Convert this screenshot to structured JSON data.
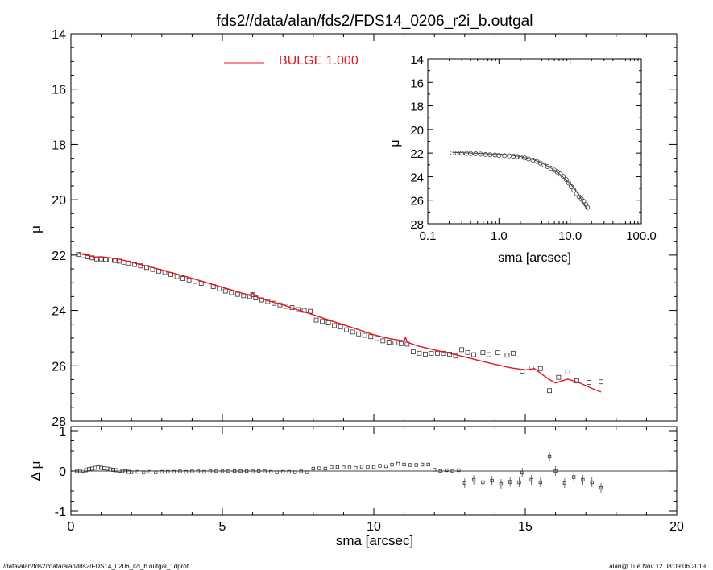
{
  "title": "fds2//data/alan/fds2/FDS14_0206_r2i_b.outgal",
  "footer_left": "/data/alan/fds2//data/alan/fds2/FDS14_0206_r2i_b.outgal_1dprof",
  "footer_right": "alan@  Tue Nov 12 08:09:06 2019",
  "legend": {
    "label": "BULGE  1.000",
    "color": "#e8141b"
  },
  "chart_data": [
    {
      "id": "main",
      "type": "scatter",
      "xlabel": "sma [arcsec]",
      "ylabel": "μ",
      "xlim": [
        0,
        20
      ],
      "ylim": [
        28,
        14
      ],
      "y_inverted": true,
      "xticks": [
        0,
        5,
        10,
        15,
        20
      ],
      "yticks": [
        14,
        16,
        18,
        20,
        22,
        24,
        26,
        28
      ],
      "observed": {
        "x": [
          0.25,
          0.4,
          0.55,
          0.7,
          0.85,
          1.0,
          1.15,
          1.3,
          1.45,
          1.6,
          1.75,
          1.9,
          2.1,
          2.3,
          2.5,
          2.7,
          2.9,
          3.1,
          3.3,
          3.5,
          3.7,
          3.9,
          4.1,
          4.3,
          4.5,
          4.7,
          4.9,
          5.1,
          5.3,
          5.5,
          5.7,
          5.9,
          6.0,
          6.1,
          6.3,
          6.5,
          6.7,
          6.9,
          7.1,
          7.3,
          7.5,
          7.7,
          7.9,
          8.1,
          8.3,
          8.5,
          8.7,
          8.9,
          9.1,
          9.3,
          9.5,
          9.7,
          9.9,
          10.1,
          10.3,
          10.5,
          10.7,
          10.9,
          11.1,
          11.3,
          11.5,
          11.7,
          11.9,
          12.1,
          12.3,
          12.5,
          12.7,
          12.9,
          13.1,
          13.3,
          13.6,
          13.8,
          14.1,
          14.4,
          14.6,
          14.9,
          15.2,
          15.5,
          15.8,
          16.1,
          16.4,
          16.7,
          17.1,
          17.5
        ],
        "y": [
          21.98,
          22.02,
          22.06,
          22.1,
          22.14,
          22.14,
          22.16,
          22.18,
          22.2,
          22.22,
          22.26,
          22.29,
          22.34,
          22.39,
          22.45,
          22.52,
          22.58,
          22.63,
          22.7,
          22.78,
          22.85,
          22.9,
          22.95,
          23.02,
          23.08,
          23.14,
          23.22,
          23.3,
          23.36,
          23.42,
          23.47,
          23.5,
          23.43,
          23.55,
          23.62,
          23.68,
          23.74,
          23.8,
          23.85,
          23.9,
          23.97,
          24.0,
          24.03,
          24.35,
          24.4,
          24.45,
          24.55,
          24.6,
          24.7,
          24.78,
          24.85,
          24.9,
          24.95,
          25.02,
          25.1,
          25.15,
          25.18,
          25.2,
          25.22,
          25.5,
          25.55,
          25.58,
          25.55,
          25.55,
          25.55,
          25.58,
          25.65,
          25.42,
          25.52,
          25.6,
          25.53,
          25.6,
          25.53,
          25.62,
          25.55,
          26.2,
          26.08,
          26.1,
          26.9,
          26.42,
          26.22,
          26.55,
          26.6,
          26.58
        ]
      },
      "model": {
        "name": "BULGE  1.000",
        "x": [
          0.25,
          0.5,
          0.8,
          1.0,
          1.3,
          1.6,
          2.0,
          2.4,
          2.8,
          3.2,
          3.6,
          4.0,
          4.4,
          4.8,
          5.2,
          5.6,
          5.9,
          6.0,
          6.1,
          6.5,
          7.0,
          7.5,
          8.0,
          8.5,
          9.0,
          9.5,
          10.0,
          10.5,
          11.0,
          11.05,
          11.1,
          11.5,
          12.0,
          12.5,
          13.0,
          13.5,
          14.0,
          14.5,
          15.0,
          15.3,
          15.6,
          15.8,
          16.0,
          16.4,
          16.8,
          17.2,
          17.5
        ],
        "y": [
          21.93,
          22.0,
          22.07,
          22.06,
          22.1,
          22.15,
          22.26,
          22.37,
          22.48,
          22.6,
          22.72,
          22.84,
          22.97,
          23.1,
          23.23,
          23.36,
          23.46,
          23.38,
          23.5,
          23.65,
          23.8,
          23.98,
          24.16,
          24.34,
          24.52,
          24.7,
          24.88,
          25.02,
          25.1,
          24.98,
          25.15,
          25.3,
          25.43,
          25.55,
          25.68,
          25.82,
          25.95,
          26.07,
          26.15,
          26.1,
          26.35,
          26.5,
          26.62,
          26.48,
          26.62,
          26.82,
          26.95
        ]
      }
    },
    {
      "id": "residual",
      "type": "scatter",
      "xlabel": "",
      "ylabel": "Δ μ",
      "xlim": [
        0,
        20
      ],
      "ylim": [
        -1.1,
        1.1
      ],
      "yticks": [
        -1,
        0,
        1
      ],
      "x": [
        0.2,
        0.3,
        0.4,
        0.5,
        0.6,
        0.7,
        0.8,
        0.9,
        1.0,
        1.1,
        1.2,
        1.3,
        1.4,
        1.5,
        1.6,
        1.7,
        1.8,
        1.9,
        2.0,
        2.2,
        2.4,
        2.6,
        2.8,
        3.0,
        3.2,
        3.4,
        3.6,
        3.8,
        4.0,
        4.2,
        4.4,
        4.6,
        4.8,
        5.0,
        5.2,
        5.4,
        5.6,
        5.8,
        6.0,
        6.2,
        6.4,
        6.6,
        6.8,
        7.0,
        7.2,
        7.4,
        7.6,
        7.8,
        8.0,
        8.2,
        8.4,
        8.6,
        8.8,
        9.0,
        9.2,
        9.4,
        9.6,
        9.8,
        10.0,
        10.2,
        10.4,
        10.6,
        10.8,
        11.0,
        11.2,
        11.4,
        11.6,
        11.8,
        12.0,
        12.2,
        12.4,
        12.6,
        12.8,
        13.0,
        13.3,
        13.6,
        13.9,
        14.2,
        14.5,
        14.8,
        14.9,
        15.2,
        15.5,
        15.8,
        16.0,
        16.3,
        16.6,
        16.9,
        17.2,
        17.5
      ],
      "y": [
        0.0,
        0.0,
        0.01,
        0.02,
        0.05,
        0.06,
        0.08,
        0.09,
        0.08,
        0.07,
        0.06,
        0.04,
        0.03,
        0.02,
        0.01,
        0.0,
        -0.01,
        -0.02,
        -0.03,
        -0.02,
        -0.03,
        -0.02,
        -0.03,
        -0.02,
        -0.02,
        -0.02,
        -0.01,
        -0.02,
        -0.01,
        -0.01,
        -0.02,
        -0.01,
        0.0,
        -0.01,
        0.0,
        0.0,
        0.0,
        0.0,
        -0.01,
        0.0,
        -0.01,
        -0.02,
        -0.03,
        -0.02,
        -0.02,
        -0.03,
        -0.01,
        -0.03,
        0.06,
        0.07,
        0.06,
        0.1,
        0.1,
        0.09,
        0.09,
        0.08,
        0.11,
        0.1,
        0.1,
        0.13,
        0.12,
        0.16,
        0.18,
        0.16,
        0.15,
        0.15,
        0.16,
        0.16,
        0.03,
        0.0,
        0.02,
        0.0,
        0.02,
        -0.3,
        -0.22,
        -0.28,
        -0.24,
        -0.32,
        -0.27,
        -0.28,
        -0.04,
        -0.22,
        -0.28,
        0.36,
        0.0,
        -0.3,
        -0.15,
        -0.22,
        -0.28,
        -0.42
      ]
    },
    {
      "id": "inset",
      "type": "scatter",
      "xscale": "log",
      "xlabel": "sma [arcsec]",
      "ylabel": "μ",
      "xlim": [
        0.1,
        100
      ],
      "ylim": [
        28,
        14
      ],
      "y_inverted": true,
      "xtick_labels": [
        "0.1",
        "1.0",
        "10.0",
        "100.0"
      ],
      "yticks": [
        14,
        16,
        18,
        20,
        22,
        24,
        26,
        28
      ],
      "x": [
        0.22,
        0.26,
        0.3,
        0.35,
        0.4,
        0.47,
        0.55,
        0.65,
        0.75,
        0.88,
        1.0,
        1.2,
        1.4,
        1.6,
        1.8,
        2.0,
        2.3,
        2.6,
        3.0,
        3.4,
        3.8,
        4.3,
        4.8,
        5.4,
        6.0,
        6.6,
        7.3,
        8.0,
        8.8,
        9.6,
        10.4,
        11.3,
        12.3,
        13.3,
        14.4,
        15.5,
        16.6,
        17.5
      ],
      "y": [
        21.98,
        22.0,
        22.02,
        22.03,
        22.05,
        22.06,
        22.08,
        22.12,
        22.14,
        22.16,
        22.2,
        22.22,
        22.24,
        22.26,
        22.3,
        22.35,
        22.42,
        22.5,
        22.6,
        22.72,
        22.85,
        23.0,
        23.15,
        23.3,
        23.45,
        23.6,
        23.78,
        23.98,
        24.25,
        24.55,
        24.85,
        25.15,
        25.45,
        25.7,
        25.9,
        26.1,
        26.35,
        26.6
      ],
      "model_x": [
        0.22,
        0.3,
        0.5,
        0.8,
        1.0,
        1.5,
        2.0,
        3.0,
        4.0,
        5.0,
        6.0,
        7.0,
        8.0,
        9.0,
        10.0,
        11.0,
        12.0,
        13.0,
        14.0,
        15.0,
        16.0,
        17.5
      ],
      "model_y": [
        21.93,
        21.97,
        22.02,
        22.07,
        22.08,
        22.18,
        22.3,
        22.55,
        22.85,
        23.15,
        23.45,
        23.75,
        24.05,
        24.35,
        24.6,
        24.9,
        25.2,
        25.5,
        25.8,
        26.1,
        26.4,
        26.9
      ]
    }
  ]
}
